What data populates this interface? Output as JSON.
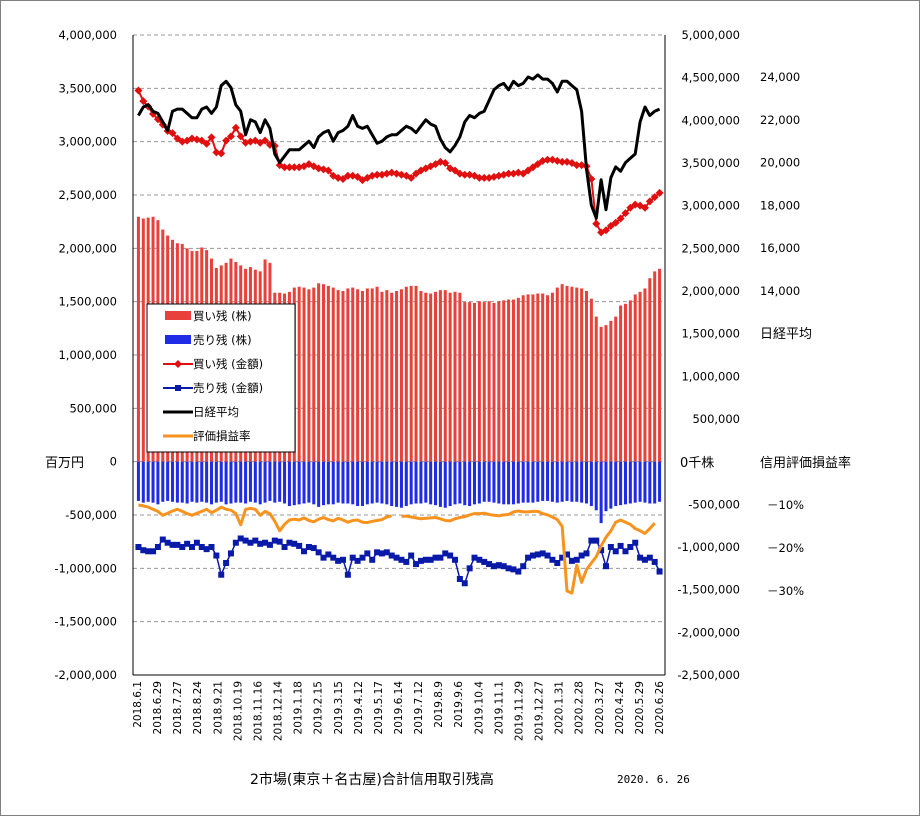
{
  "title": "2市場(東京＋名古屋)合計信用取引残高",
  "date_label": "2020. 6. 26",
  "axis_labels": {
    "left_unit": "百万円",
    "right1_unit": "0千株",
    "right2_name": "日経平均",
    "right3_name": "信用評価損益率"
  },
  "colors": {
    "buy_bar": "#e8403a",
    "sell_bar": "#1f2be6",
    "buy_amount": "#e01010",
    "sell_amount": "#0a1aa8",
    "nikkei": "#000000",
    "ratio": "#f7931e"
  },
  "legend": [
    {
      "label": "買い残 (株)",
      "type": "bar",
      "color": "#e8403a"
    },
    {
      "label": "売り残 (株)",
      "type": "bar",
      "color": "#1f2be6"
    },
    {
      "label": "買い残 (金額)",
      "type": "line-diamond",
      "color": "#e01010"
    },
    {
      "label": "売り残 (金額)",
      "type": "line-square",
      "color": "#0a1aa8"
    },
    {
      "label": "日経平均",
      "type": "line",
      "color": "#000000"
    },
    {
      "label": "評価損益率",
      "type": "line",
      "color": "#f7931e"
    }
  ],
  "chart_data": {
    "type": "bar",
    "left_axis": {
      "min": -2000000,
      "max": 4000000,
      "ticks": [
        "4,000,000",
        "3,500,000",
        "3,000,000",
        "2,500,000",
        "2,000,000",
        "1,500,000",
        "1,000,000",
        "500,000",
        "0",
        "-500,000",
        "-1,000,000",
        "-1,500,000",
        "-2,000,000"
      ]
    },
    "right_axis_shares": {
      "min": -2500000,
      "max": 5000000,
      "ticks": [
        "5,000,000",
        "4,500,000",
        "4,000,000",
        "3,500,000",
        "3,000,000",
        "2,500,000",
        "2,000,000",
        "1,500,000",
        "1,000,000",
        "500,000",
        "0千株",
        "-500,000",
        "-1,000,000",
        "-1,500,000",
        "-2,000,000",
        "-2,500,000"
      ]
    },
    "nikkei_axis": {
      "ticks": [
        {
          "label": "24,000",
          "value": 24000
        },
        {
          "label": "22,000",
          "value": 22000
        },
        {
          "label": "20,000",
          "value": 20000
        },
        {
          "label": "18,000",
          "value": 18000
        },
        {
          "label": "16,000",
          "value": 16000
        },
        {
          "label": "14,000",
          "value": 14000
        }
      ]
    },
    "ratio_axis": {
      "ticks": [
        {
          "label": "－10%",
          "value": -10
        },
        {
          "label": "－20%",
          "value": -20
        },
        {
          "label": "－30%",
          "value": -30
        }
      ]
    },
    "x_labels": [
      "2018.6.1",
      "2018.6.29",
      "2018.7.27",
      "2018.8.24",
      "2018.9.21",
      "2018.10.19",
      "2018.11.16",
      "2018.12.14",
      "2019.1.18",
      "2019.2.15",
      "2019.3.15",
      "2019.4.12",
      "2019.5.17",
      "2019.6.14",
      "2019.7.12",
      "2019.8.9",
      "2019.9.6",
      "2019.10.4",
      "2019.11.1",
      "2019.11.29",
      "2019.12.27",
      "2020.1.31",
      "2020.2.28",
      "2020.3.27",
      "2020.4.24",
      "2020.5.29",
      "2020.6.26"
    ],
    "series": [
      {
        "name": "買い残 (株)",
        "unit": "千株",
        "values": [
          2870000,
          2850000,
          2860000,
          2870000,
          2830000,
          2720000,
          2650000,
          2600000,
          2560000,
          2550000,
          2500000,
          2470000,
          2470000,
          2510000,
          2480000,
          2380000,
          2270000,
          2300000,
          2330000,
          2380000,
          2340000,
          2300000,
          2260000,
          2280000,
          2250000,
          2230000,
          2370000,
          2330000,
          1980000,
          1980000,
          1970000,
          1990000,
          2040000,
          2050000,
          2040000,
          2020000,
          2040000,
          2090000,
          2080000,
          2060000,
          2040000,
          2010000,
          2000000,
          2030000,
          2040000,
          2020000,
          2000000,
          2030000,
          2030000,
          2050000,
          1990000,
          2010000,
          1980000,
          2000000,
          2020000,
          2050000,
          2060000,
          2060000,
          2000000,
          1980000,
          1970000,
          1990000,
          2010000,
          2010000,
          1980000,
          1990000,
          1980000,
          1870000,
          1870000,
          1860000,
          1880000,
          1870000,
          1880000,
          1860000,
          1880000,
          1890000,
          1900000,
          1900000,
          1920000,
          1950000,
          1960000,
          1960000,
          1970000,
          1970000,
          1950000,
          1980000,
          2040000,
          2080000,
          2060000,
          2050000,
          2040000,
          2030000,
          2000000,
          1910000,
          1700000,
          1580000,
          1600000,
          1650000,
          1700000,
          1830000,
          1850000,
          1890000,
          1960000,
          1990000,
          2030000,
          2150000,
          2230000,
          2260000
        ]
      },
      {
        "name": "売り残 (株)",
        "unit": "千株",
        "values": [
          -460000,
          -480000,
          -470000,
          -480000,
          -500000,
          -470000,
          -460000,
          -470000,
          -480000,
          -480000,
          -490000,
          -470000,
          -480000,
          -470000,
          -480000,
          -500000,
          -480000,
          -470000,
          -500000,
          -490000,
          -480000,
          -480000,
          -490000,
          -470000,
          -480000,
          -500000,
          -480000,
          -460000,
          -480000,
          -470000,
          -490000,
          -520000,
          -510000,
          -500000,
          -490000,
          -480000,
          -500000,
          -530000,
          -510000,
          -500000,
          -500000,
          -480000,
          -490000,
          -490000,
          -500000,
          -520000,
          -520000,
          -500000,
          -490000,
          -480000,
          -490000,
          -500000,
          -520000,
          -530000,
          -540000,
          -520000,
          -500000,
          -490000,
          -490000,
          -480000,
          -500000,
          -510000,
          -530000,
          -540000,
          -520000,
          -500000,
          -490000,
          -510000,
          -520000,
          -500000,
          -490000,
          -470000,
          -470000,
          -480000,
          -490000,
          -500000,
          -500000,
          -500000,
          -490000,
          -480000,
          -480000,
          -480000,
          -470000,
          -460000,
          -460000,
          -470000,
          -480000,
          -470000,
          -460000,
          -470000,
          -470000,
          -480000,
          -490000,
          -520000,
          -570000,
          -720000,
          -580000,
          -550000,
          -520000,
          -510000,
          -500000,
          -490000,
          -480000,
          -470000,
          -480000,
          -490000,
          -490000,
          -470000
        ]
      },
      {
        "name": "買い残 (金額)",
        "unit": "百万円",
        "values": [
          3480000,
          3380000,
          3330000,
          3260000,
          3210000,
          3160000,
          3100000,
          3080000,
          3030000,
          3000000,
          3010000,
          3030000,
          3020000,
          3010000,
          2980000,
          3040000,
          2900000,
          2890000,
          3010000,
          3050000,
          3130000,
          3050000,
          2990000,
          3000000,
          3010000,
          2990000,
          3010000,
          2970000,
          2960000,
          2780000,
          2760000,
          2760000,
          2760000,
          2760000,
          2770000,
          2790000,
          2770000,
          2750000,
          2740000,
          2730000,
          2680000,
          2660000,
          2650000,
          2680000,
          2680000,
          2670000,
          2640000,
          2660000,
          2680000,
          2690000,
          2690000,
          2700000,
          2710000,
          2700000,
          2690000,
          2680000,
          2660000,
          2700000,
          2730000,
          2750000,
          2770000,
          2790000,
          2810000,
          2800000,
          2750000,
          2730000,
          2700000,
          2690000,
          2690000,
          2680000,
          2660000,
          2660000,
          2660000,
          2670000,
          2680000,
          2690000,
          2700000,
          2700000,
          2710000,
          2700000,
          2730000,
          2760000,
          2790000,
          2820000,
          2830000,
          2830000,
          2820000,
          2810000,
          2810000,
          2800000,
          2780000,
          2780000,
          2770000,
          2650000,
          2230000,
          2150000,
          2170000,
          2210000,
          2240000,
          2280000,
          2330000,
          2380000,
          2410000,
          2400000,
          2380000,
          2440000,
          2480000,
          2520000
        ]
      },
      {
        "name": "売り残 (金額)",
        "unit": "百万円",
        "values": [
          -800000,
          -830000,
          -840000,
          -840000,
          -800000,
          -730000,
          -760000,
          -780000,
          -780000,
          -800000,
          -770000,
          -800000,
          -760000,
          -800000,
          -820000,
          -800000,
          -880000,
          -1060000,
          -950000,
          -860000,
          -760000,
          -720000,
          -740000,
          -760000,
          -740000,
          -770000,
          -760000,
          -780000,
          -740000,
          -750000,
          -800000,
          -760000,
          -770000,
          -790000,
          -840000,
          -800000,
          -810000,
          -850000,
          -900000,
          -870000,
          -900000,
          -930000,
          -920000,
          -1060000,
          -900000,
          -930000,
          -900000,
          -860000,
          -920000,
          -850000,
          -860000,
          -850000,
          -880000,
          -900000,
          -920000,
          -940000,
          -880000,
          -960000,
          -930000,
          -920000,
          -920000,
          -900000,
          -900000,
          -860000,
          -880000,
          -920000,
          -1100000,
          -1140000,
          -1000000,
          -900000,
          -920000,
          -940000,
          -960000,
          -980000,
          -970000,
          -980000,
          -1000000,
          -1010000,
          -1030000,
          -980000,
          -900000,
          -880000,
          -870000,
          -860000,
          -880000,
          -920000,
          -950000,
          -900000,
          -870000,
          -930000,
          -920000,
          -880000,
          -860000,
          -740000,
          -740000,
          -830000,
          -980000,
          -800000,
          -840000,
          -790000,
          -840000,
          -800000,
          -760000,
          -900000,
          -920000,
          -900000,
          -940000,
          -1030000
        ]
      },
      {
        "name": "日経平均",
        "unit": "円",
        "values": [
          22200,
          22600,
          22700,
          22400,
          22300,
          21900,
          21500,
          22400,
          22500,
          22500,
          22300,
          22100,
          22100,
          22500,
          22600,
          22300,
          22600,
          23600,
          23800,
          23500,
          22700,
          22400,
          21300,
          22000,
          21900,
          21400,
          22000,
          21600,
          20400,
          20000,
          20300,
          20600,
          20600,
          20600,
          20800,
          21000,
          20700,
          21200,
          21400,
          21500,
          21000,
          21400,
          21500,
          21700,
          22200,
          21700,
          21600,
          21700,
          21300,
          20900,
          21000,
          21200,
          21300,
          21300,
          21500,
          21700,
          21600,
          21400,
          21700,
          22000,
          21800,
          21700,
          21100,
          20700,
          20500,
          20800,
          21200,
          21900,
          22200,
          22100,
          22300,
          22400,
          22900,
          23400,
          23600,
          23700,
          23400,
          23800,
          23600,
          23700,
          24000,
          23900,
          24100,
          23900,
          23900,
          23700,
          23300,
          23800,
          23800,
          23600,
          23400,
          22400,
          19700,
          18000,
          17400,
          19200,
          17800,
          19300,
          19800,
          19600,
          20000,
          20200,
          20400,
          21900,
          22600,
          22200,
          22400,
          22500
        ]
      },
      {
        "name": "評価損益率",
        "unit": "%",
        "values": [
          -10.0,
          -10.2,
          -10.5,
          -11.0,
          -11.5,
          -12.4,
          -11.9,
          -11.4,
          -11.0,
          -11.5,
          -12.0,
          -12.4,
          -11.9,
          -11.5,
          -11.0,
          -11.8,
          -11.2,
          -10.5,
          -11.0,
          -11.2,
          -12.0,
          -14.6,
          -11.0,
          -10.8,
          -11.0,
          -12.4,
          -11.5,
          -12.0,
          -13.8,
          -16.0,
          -14.5,
          -13.5,
          -13.3,
          -13.5,
          -13.0,
          -13.6,
          -13.9,
          -13.3,
          -12.9,
          -13.4,
          -13.7,
          -13.1,
          -13.5,
          -14.0,
          -13.6,
          -13.5,
          -14.0,
          -14.1,
          -13.8,
          -13.6,
          -13.4,
          -12.8,
          -12.5,
          null,
          -12.6,
          -12.6,
          -12.8,
          -13.0,
          -13.2,
          -13.1,
          -13.0,
          -12.9,
          -13.2,
          -13.6,
          -13.7,
          -13.2,
          -12.9,
          -12.7,
          -12.3,
          -12.0,
          -12.0,
          -11.9,
          -12.2,
          -12.4,
          -12.5,
          -12.3,
          -12.2,
          -11.6,
          -11.4,
          -11.6,
          -11.6,
          -11.5,
          -11.5,
          -12.0,
          -12.3,
          -12.8,
          -13.4,
          -15.0,
          -30.0,
          -30.5,
          -24.0,
          -28.0,
          -25.0,
          -23.5,
          -22.0,
          -19.5,
          -17.5,
          -16.0,
          -14.0,
          -13.5,
          -14.0,
          -14.5,
          -15.5,
          -16.0,
          -16.6,
          -15.5,
          -14.2
        ]
      }
    ]
  }
}
